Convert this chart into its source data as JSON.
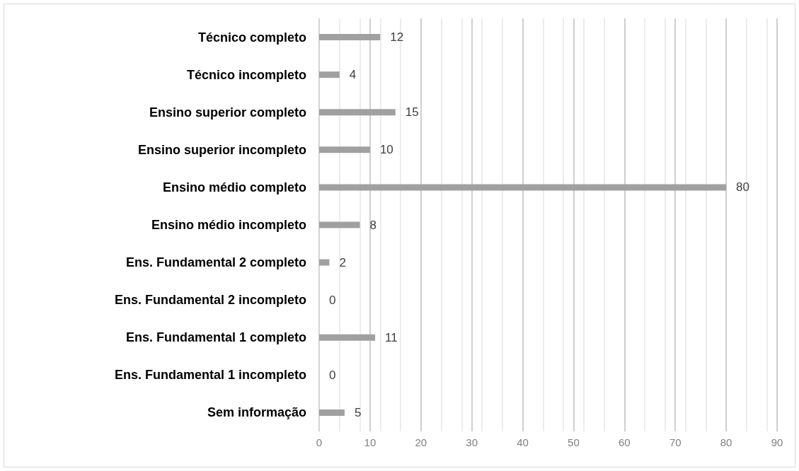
{
  "chart_data": {
    "type": "bar",
    "orientation": "horizontal",
    "categories": [
      "Técnico completo",
      "Técnico incompleto",
      "Ensino superior completo",
      "Ensino superior incompleto",
      "Ensino médio completo",
      "Ensino médio incompleto",
      "Ens. Fundamental 2 completo",
      "Ens. Fundamental 2 incompleto",
      "Ens. Fundamental 1 completo",
      "Ens. Fundamental 1 incompleto",
      "Sem informação"
    ],
    "values": [
      12,
      4,
      15,
      10,
      80,
      8,
      2,
      0,
      11,
      0,
      5
    ],
    "color": "#a0a0a0",
    "xlim": [
      0,
      90
    ],
    "xticks": [
      0,
      10,
      20,
      30,
      40,
      50,
      60,
      70,
      80,
      90
    ],
    "grid": "x",
    "data_labels": true
  }
}
